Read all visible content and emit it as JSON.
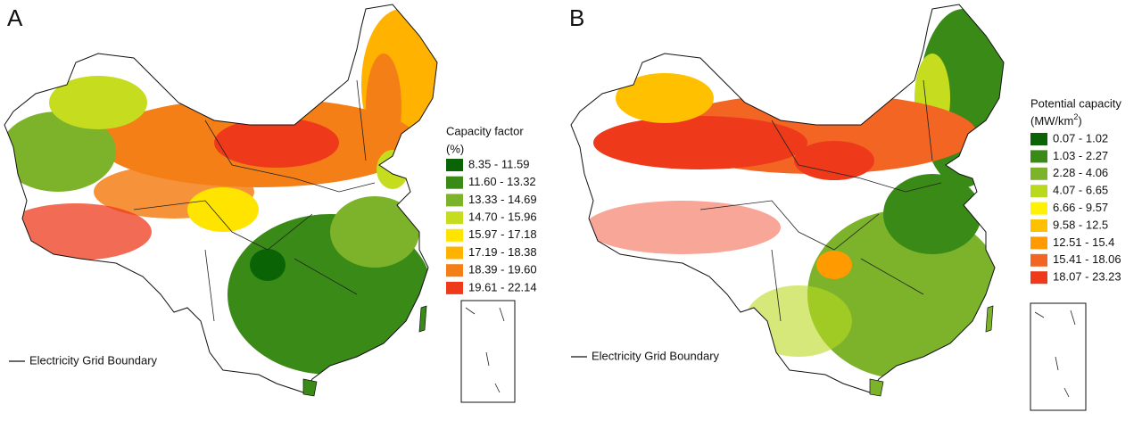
{
  "panels": [
    {
      "label": "A",
      "legend": {
        "title": "Capacity factor",
        "unit": "(%)",
        "entries": [
          {
            "label": "8.35 - 11.59",
            "color": "#0a6406"
          },
          {
            "label": "11.60 - 13.32",
            "color": "#3a8a17"
          },
          {
            "label": "13.33 - 14.69",
            "color": "#7cb32b"
          },
          {
            "label": "14.70 - 15.96",
            "color": "#c6dd1f"
          },
          {
            "label": "15.97 - 17.18",
            "color": "#ffe400"
          },
          {
            "label": "17.19 - 18.38",
            "color": "#ffb300"
          },
          {
            "label": "18.39 - 19.60",
            "color": "#f57f17"
          },
          {
            "label": "19.61 - 22.14",
            "color": "#ee3a1b"
          }
        ]
      },
      "grid_boundary_label": "Electricity Grid Boundary"
    },
    {
      "label": "B",
      "legend": {
        "title": "Potential capacity",
        "unit_prefix": "(MW/km",
        "unit_sup": "2",
        "unit_suffix": ")",
        "entries": [
          {
            "label": "0.07 - 1.02",
            "color": "#0a6406"
          },
          {
            "label": "1.03 - 2.27",
            "color": "#3a8a17"
          },
          {
            "label": "2.28 - 4.06",
            "color": "#7cb32b"
          },
          {
            "label": "4.07 - 6.65",
            "color": "#b9d91f"
          },
          {
            "label": "6.66 - 9.57",
            "color": "#fff200"
          },
          {
            "label": "9.58 - 12.5",
            "color": "#ffc000"
          },
          {
            "label": "12.51 - 15.4",
            "color": "#ff9a00"
          },
          {
            "label": "15.41 - 18.06",
            "color": "#f26522"
          },
          {
            "label": "18.07 - 23.23",
            "color": "#ee3a1b"
          }
        ]
      },
      "grid_boundary_label": "Electricity Grid Boundary"
    }
  ]
}
